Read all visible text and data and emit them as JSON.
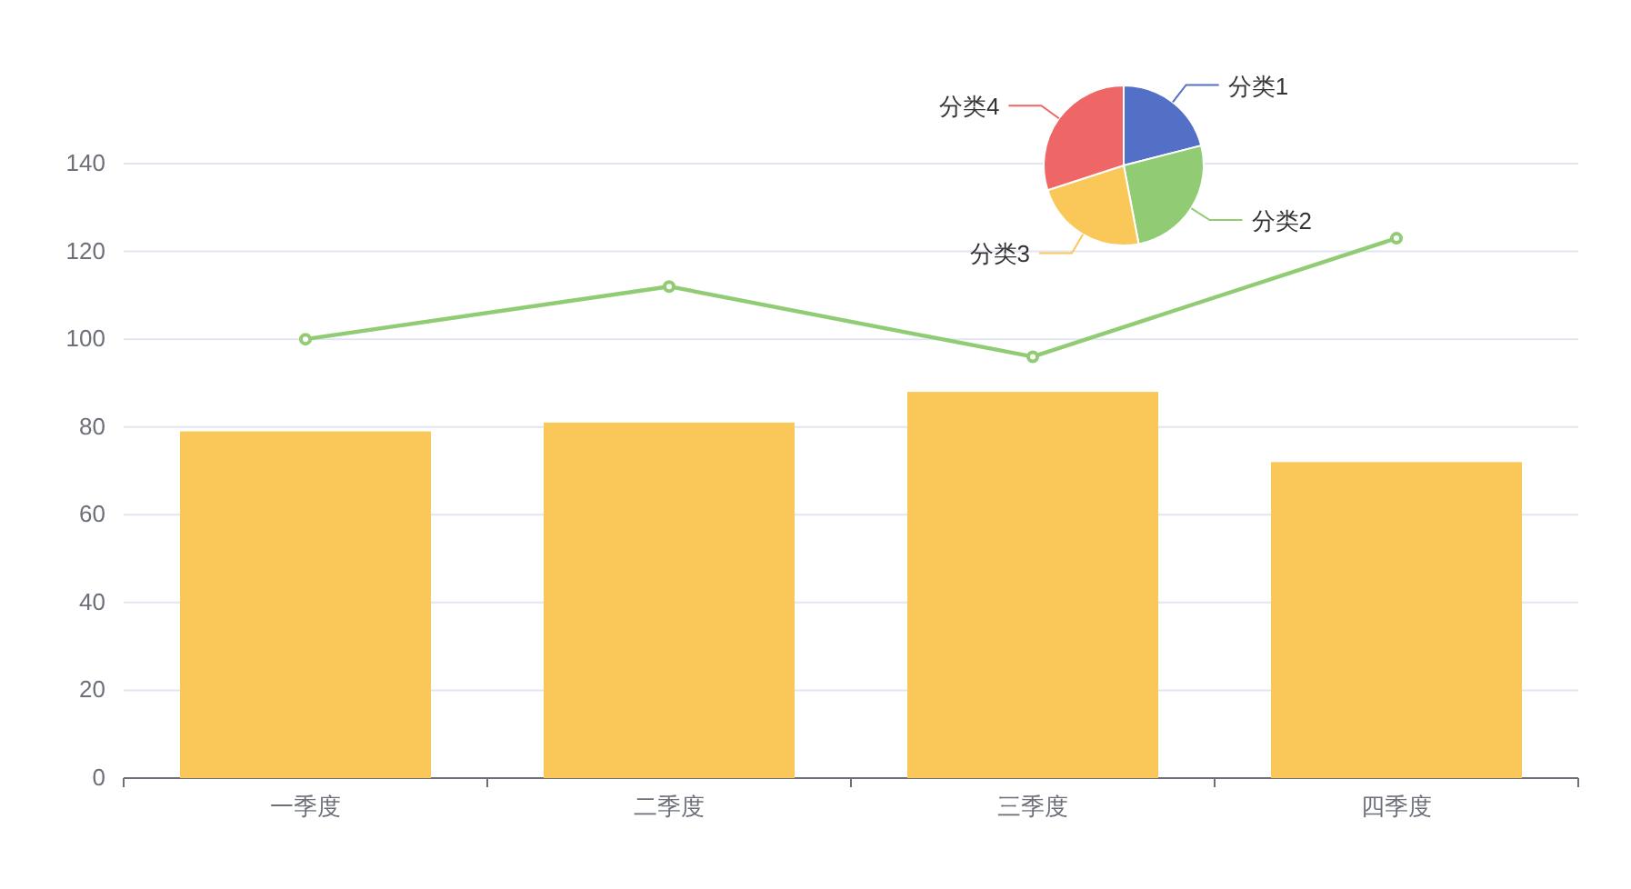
{
  "chart_data": [
    {
      "type": "bar",
      "categories": [
        "一季度",
        "二季度",
        "三季度",
        "四季度"
      ],
      "ylim": [
        0,
        140
      ],
      "yticks": [
        0,
        20,
        40,
        60,
        80,
        100,
        120,
        140
      ],
      "grid": "y",
      "series": [
        {
          "type": "bar",
          "color": "#fac858",
          "values": [
            79,
            81,
            88,
            72
          ]
        },
        {
          "type": "line",
          "color": "#91cc75",
          "marker": "circle",
          "values": [
            100,
            112,
            96,
            123
          ]
        }
      ]
    },
    {
      "type": "pie",
      "categories": [
        "分类1",
        "分类2",
        "分类3",
        "分类4"
      ],
      "values": [
        21,
        26,
        23,
        30
      ],
      "colors": [
        "#5470c6",
        "#91cc75",
        "#fac858",
        "#ee6666"
      ]
    }
  ]
}
